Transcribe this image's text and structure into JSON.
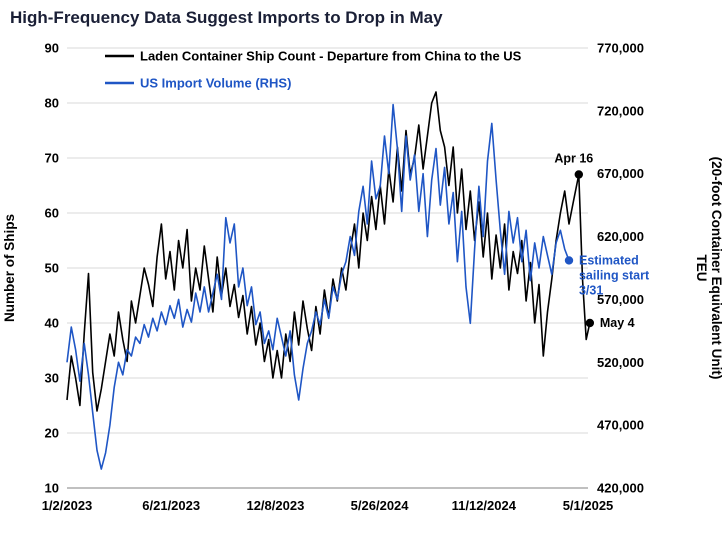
{
  "chart_data": {
    "type": "line",
    "title": "High-Frequency Data Suggest Imports to Drop in May",
    "colors": {
      "ships": "#000000",
      "imports": "#1f56c5",
      "grid": "#d9d9d9",
      "axis": "#808080",
      "title": "#1a1f36"
    },
    "x_axis": {
      "axis_max_day": 850,
      "tick_days": [
        0,
        170,
        340,
        510,
        680,
        850
      ],
      "tick_labels": [
        "1/2/2023",
        "6/21/2023",
        "12/8/2023",
        "5/26/2024",
        "11/12/2024",
        "5/1/2025"
      ]
    },
    "y_left": {
      "label": "Number of Ships",
      "min": 10,
      "max": 90,
      "tick_step": 10
    },
    "y_right": {
      "label_lines": [
        "TEU",
        "(20-foot Container Equivalent Unit)"
      ],
      "min": 420000,
      "max": 770000,
      "tick_step": 50000
    },
    "series": [
      {
        "key": "ships",
        "name": "Laden Container Ship Count - Departure from China to the US",
        "color": "#000000",
        "axis": "left",
        "x_days": [
          0,
          7,
          14,
          21,
          28,
          35,
          42,
          49,
          56,
          63,
          70,
          77,
          84,
          91,
          98,
          105,
          112,
          119,
          126,
          133,
          140,
          147,
          154,
          161,
          168,
          175,
          182,
          189,
          196,
          203,
          210,
          217,
          224,
          231,
          238,
          245,
          252,
          259,
          266,
          273,
          280,
          287,
          294,
          301,
          308,
          315,
          322,
          329,
          336,
          343,
          350,
          357,
          364,
          371,
          378,
          385,
          392,
          399,
          406,
          413,
          420,
          427,
          434,
          441,
          448,
          455,
          462,
          469,
          476,
          483,
          490,
          497,
          504,
          511,
          518,
          525,
          532,
          539,
          546,
          553,
          560,
          567,
          574,
          581,
          588,
          595,
          602,
          609,
          616,
          623,
          630,
          637,
          644,
          651,
          658,
          665,
          672,
          679,
          686,
          693,
          700,
          707,
          714,
          721,
          728,
          735,
          742,
          749,
          756,
          763,
          770,
          777,
          784,
          791,
          798,
          805,
          812,
          819,
          826,
          835,
          841,
          847,
          853
        ],
        "y": [
          26,
          34,
          30,
          25,
          38,
          49,
          31,
          24,
          28,
          33,
          38,
          34,
          42,
          37,
          33,
          44,
          40,
          45,
          50,
          47,
          43,
          52,
          58,
          48,
          53,
          46,
          55,
          50,
          57,
          44,
          50,
          46,
          54,
          48,
          42,
          52,
          45,
          50,
          43,
          47,
          41,
          45,
          38,
          43,
          36,
          40,
          33,
          37,
          30,
          35,
          30,
          38,
          33,
          42,
          36,
          44,
          39,
          35,
          43,
          38,
          46,
          41,
          48,
          44,
          50,
          46,
          53,
          58,
          50,
          60,
          55,
          63,
          57,
          65,
          58,
          68,
          62,
          72,
          64,
          75,
          67,
          70,
          76,
          68,
          74,
          80,
          82,
          75,
          72,
          65,
          72,
          60,
          68,
          57,
          64,
          55,
          62,
          52,
          60,
          48,
          56,
          50,
          58,
          46,
          53,
          49,
          55,
          44,
          51,
          40,
          47,
          34,
          42,
          48,
          55,
          60,
          64,
          58,
          62,
          67,
          48,
          37,
          40
        ]
      },
      {
        "key": "imports",
        "name": "US Import Volume (RHS)",
        "color": "#1f56c5",
        "axis": "right",
        "x_days": [
          0,
          7,
          14,
          21,
          28,
          35,
          42,
          49,
          56,
          63,
          70,
          77,
          84,
          91,
          98,
          105,
          112,
          119,
          126,
          133,
          140,
          147,
          154,
          161,
          168,
          175,
          182,
          189,
          196,
          203,
          210,
          217,
          224,
          231,
          238,
          245,
          252,
          259,
          266,
          273,
          280,
          287,
          294,
          301,
          308,
          315,
          322,
          329,
          336,
          343,
          350,
          357,
          364,
          371,
          378,
          385,
          392,
          399,
          406,
          413,
          420,
          427,
          434,
          441,
          448,
          455,
          462,
          469,
          476,
          483,
          490,
          497,
          504,
          511,
          518,
          525,
          532,
          539,
          546,
          553,
          560,
          567,
          574,
          581,
          588,
          595,
          602,
          609,
          616,
          623,
          630,
          637,
          644,
          651,
          658,
          665,
          672,
          679,
          686,
          693,
          700,
          707,
          714,
          721,
          728,
          735,
          742,
          749,
          756,
          763,
          770,
          777,
          784,
          791,
          798,
          805,
          812,
          819
        ],
        "y": [
          520000,
          548000,
          530000,
          505000,
          535000,
          510000,
          480000,
          450000,
          435000,
          448000,
          470000,
          500000,
          520000,
          510000,
          530000,
          525000,
          540000,
          535000,
          550000,
          540000,
          555000,
          545000,
          560000,
          550000,
          565000,
          555000,
          570000,
          548000,
          562000,
          552000,
          575000,
          560000,
          580000,
          560000,
          575000,
          590000,
          570000,
          635000,
          615000,
          630000,
          580000,
          595000,
          565000,
          580000,
          550000,
          560000,
          535000,
          545000,
          530000,
          555000,
          540000,
          525000,
          545000,
          510000,
          490000,
          515000,
          535000,
          545000,
          560000,
          550000,
          570000,
          555000,
          580000,
          570000,
          590000,
          600000,
          620000,
          605000,
          640000,
          660000,
          630000,
          680000,
          650000,
          660000,
          700000,
          670000,
          725000,
          690000,
          640000,
          700000,
          665000,
          685000,
          640000,
          670000,
          620000,
          665000,
          690000,
          645000,
          675000,
          630000,
          655000,
          600000,
          640000,
          580000,
          551000,
          610000,
          660000,
          620000,
          680000,
          710000,
          665000,
          625000,
          590000,
          640000,
          615000,
          635000,
          600000,
          625000,
          585000,
          615000,
          595000,
          620000,
          605000,
          590000,
          615000,
          625000,
          610000,
          601000
        ]
      }
    ],
    "annotations": [
      {
        "label_lines": [
          "Apr 16"
        ],
        "x_day": 835,
        "y": 67,
        "axis": "left",
        "color": "#000000",
        "placement": "above"
      },
      {
        "label_lines": [
          "May 4"
        ],
        "x_day": 853,
        "y": 40,
        "axis": "left",
        "color": "#000000",
        "placement": "right"
      },
      {
        "label_lines": [
          "Estimated",
          "sailing start",
          "3/31"
        ],
        "x_day": 819,
        "y": 601000,
        "axis": "right",
        "color": "#1f56c5",
        "placement": "right"
      }
    ]
  }
}
